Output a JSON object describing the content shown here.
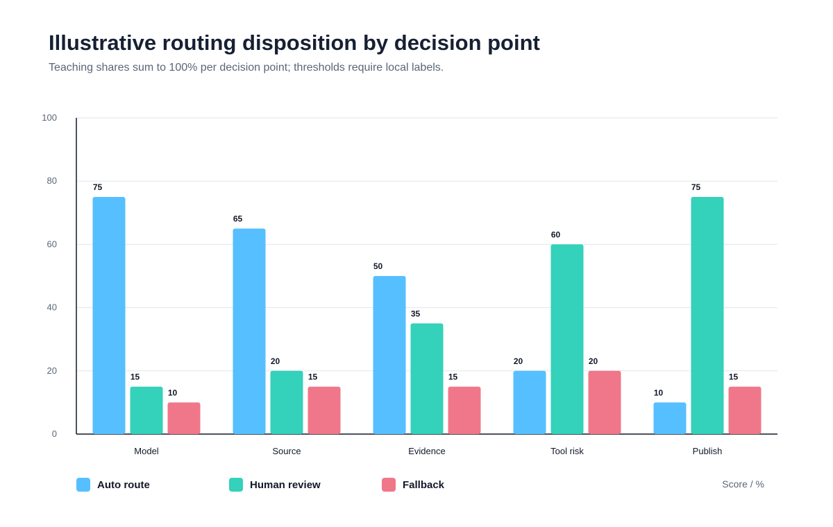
{
  "chart_data": {
    "type": "bar",
    "title": "Illustrative routing disposition by decision point",
    "subtitle": "Teaching shares sum to 100% per decision point; thresholds require local labels.",
    "categories": [
      "Model",
      "Source",
      "Evidence",
      "Tool risk",
      "Publish"
    ],
    "series": [
      {
        "name": "Auto route",
        "color": "#56bfff",
        "values": [
          75,
          65,
          50,
          20,
          10
        ]
      },
      {
        "name": "Human review",
        "color": "#34d1bb",
        "values": [
          15,
          20,
          35,
          60,
          75
        ]
      },
      {
        "name": "Fallback",
        "color": "#f07789",
        "values": [
          10,
          15,
          15,
          20,
          15
        ]
      }
    ],
    "ylim": [
      0,
      100
    ],
    "yticks": [
      0,
      20,
      40,
      60,
      80,
      100
    ],
    "unit_label": "Score / %",
    "grid": true,
    "legend_position": "bottom"
  }
}
